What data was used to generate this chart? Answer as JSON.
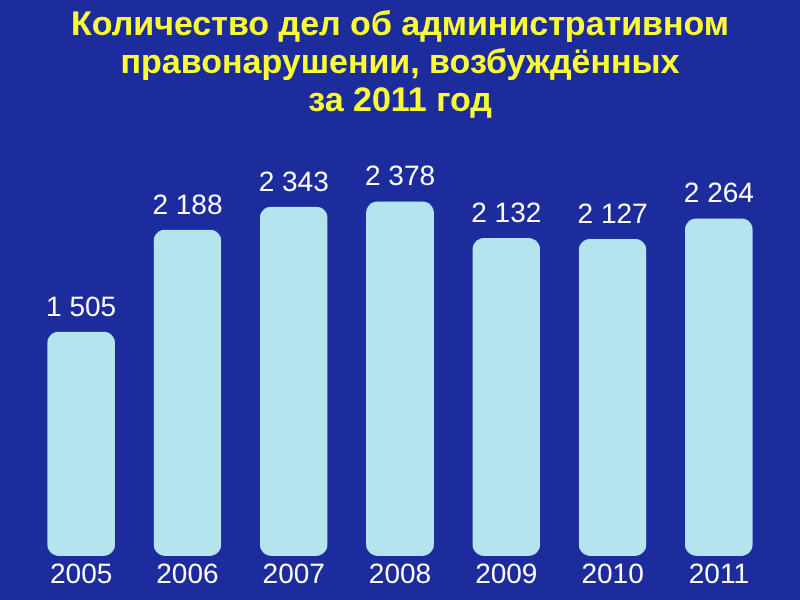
{
  "chart_data": {
    "type": "bar",
    "title": "Количество дел об административном\nправонарушении, возбуждённых\nза 2011 год",
    "categories": [
      "2005",
      "2006",
      "2007",
      "2008",
      "2009",
      "2010",
      "2011"
    ],
    "values": [
      1505,
      2188,
      2343,
      2378,
      2132,
      2127,
      2264
    ],
    "value_labels": [
      "1 505",
      "2 188",
      "2 343",
      "2 378",
      "2 132",
      "2 127",
      "2 264"
    ],
    "color": "#b4e4ee"
  }
}
